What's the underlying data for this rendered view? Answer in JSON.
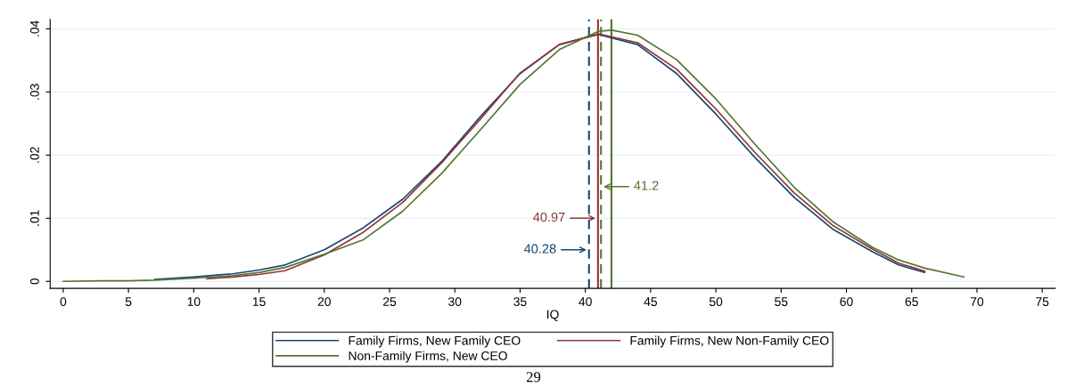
{
  "chart_data": {
    "type": "line",
    "xlabel": "IQ",
    "xlim": [
      -1,
      76
    ],
    "xticks": [
      0,
      5,
      10,
      15,
      20,
      25,
      30,
      35,
      40,
      45,
      50,
      55,
      60,
      65,
      70,
      75
    ],
    "ylim": [
      -0.0011,
      0.0415
    ],
    "yticks": [
      0,
      {
        "value": 0.01,
        "label": ".01"
      },
      {
        "value": 0.02,
        "label": ".02"
      },
      {
        "value": 0.03,
        "label": ".03"
      },
      {
        "value": 0.04,
        "label": ".04"
      }
    ],
    "grid": "y",
    "legend": "bottom",
    "marker": "none",
    "line_style": "solid",
    "series": [
      {
        "name": "Family Firms, New Family CEO",
        "color": "#1a476f",
        "x": [
          7,
          10,
          13,
          15,
          17,
          20,
          23,
          26,
          29,
          32,
          35,
          38,
          41,
          44,
          47,
          50,
          53,
          56,
          59,
          62,
          64,
          66
        ],
        "values": [
          0.0003,
          0.0007,
          0.0012,
          0.0018,
          0.0026,
          0.005,
          0.0085,
          0.013,
          0.019,
          0.0262,
          0.0329,
          0.0375,
          0.0391,
          0.0375,
          0.0329,
          0.0265,
          0.0196,
          0.0133,
          0.0082,
          0.0047,
          0.0026,
          0.0014
        ]
      },
      {
        "name": "Family Firms, New Non-Family CEO",
        "color": "#90353b",
        "x": [
          11,
          13,
          15,
          17,
          20,
          23,
          26,
          29,
          32,
          35,
          38,
          41,
          44,
          47,
          50,
          53,
          56,
          59,
          62,
          64,
          66
        ],
        "values": [
          0.0004,
          0.0007,
          0.0011,
          0.0017,
          0.0042,
          0.0078,
          0.0125,
          0.0188,
          0.0258,
          0.033,
          0.0375,
          0.0392,
          0.0378,
          0.0336,
          0.0273,
          0.0204,
          0.014,
          0.0088,
          0.0051,
          0.0029,
          0.0016
        ]
      },
      {
        "name": "Non-Family Firms, New CEO",
        "color": "#55752f",
        "x": [
          0,
          3,
          5,
          7,
          10,
          13,
          15,
          17,
          20,
          23,
          26,
          29,
          32,
          35,
          38,
          41,
          42,
          44,
          47,
          50,
          53,
          56,
          59,
          62,
          64,
          66,
          69
        ],
        "values": [
          0,
          0.0001,
          0.0001,
          0.0002,
          0.0005,
          0.0009,
          0.0014,
          0.0022,
          0.0043,
          0.0066,
          0.0111,
          0.0171,
          0.0241,
          0.0312,
          0.0367,
          0.0396,
          0.0398,
          0.039,
          0.0351,
          0.0289,
          0.0217,
          0.0149,
          0.0094,
          0.0054,
          0.0034,
          0.0021,
          0.0007
        ]
      }
    ],
    "ref_lines": [
      {
        "axis": "x",
        "value": 40.28,
        "color": "#1a476f",
        "line_style": "dashed"
      },
      {
        "axis": "x",
        "value": 40.97,
        "color": "#90353b",
        "line_style": "solid"
      },
      {
        "axis": "x",
        "value": 41.2,
        "color": "#55752f",
        "line_style": "dashed"
      },
      {
        "axis": "x",
        "value": 42,
        "color": "#55752f",
        "line_style": "solid"
      }
    ],
    "annotations": [
      {
        "text": "40.28",
        "x": 40.28,
        "y": 0.005
      },
      {
        "text": "40.97",
        "x": 40.97,
        "y": 0.01
      },
      {
        "text": "41.2",
        "x": 41.2,
        "y": 0.015
      },
      "29"
    ]
  }
}
